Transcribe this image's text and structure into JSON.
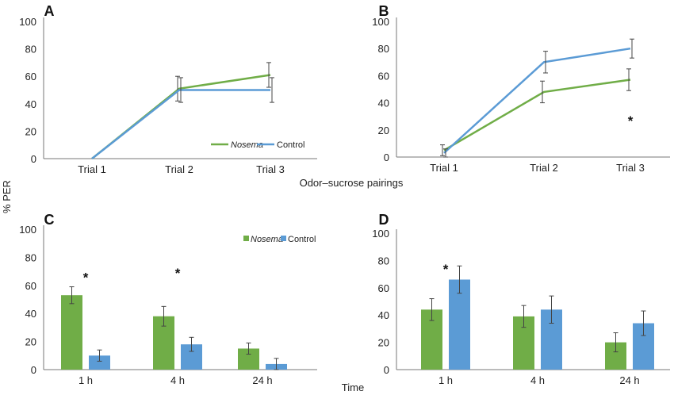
{
  "figure": {
    "ylabel": "% PER",
    "xlabel_top": "Odor–sucrose pairings",
    "xlabel_bottom": "Time"
  },
  "colors": {
    "nosema": "#70ad47",
    "control": "#5b9bd5",
    "axis": "#777777",
    "error": "#444444"
  },
  "chart_data": [
    {
      "panel": "A",
      "type": "line",
      "categories": [
        "Trial 1",
        "Trial 2",
        "Trial 3"
      ],
      "ylim": [
        0,
        100
      ],
      "yticks": [
        0,
        20,
        40,
        60,
        80,
        100
      ],
      "legend": "bottom-right",
      "series": [
        {
          "name": "Nosema",
          "color": "#70ad47",
          "values": [
            0,
            51,
            61
          ],
          "errors": [
            0,
            9,
            9
          ]
        },
        {
          "name": "Control",
          "color": "#5b9bd5",
          "values": [
            0,
            50,
            50
          ],
          "errors": [
            0,
            9,
            9
          ]
        }
      ],
      "annotations": []
    },
    {
      "panel": "B",
      "type": "line",
      "categories": [
        "Trial 1",
        "Trial 2",
        "Trial 3"
      ],
      "ylim": [
        0,
        100
      ],
      "yticks": [
        0,
        20,
        40,
        60,
        80,
        100
      ],
      "series": [
        {
          "name": "Nosema",
          "color": "#70ad47",
          "values": [
            5,
            48,
            57
          ],
          "errors": [
            4,
            8,
            8
          ]
        },
        {
          "name": "Control",
          "color": "#5b9bd5",
          "values": [
            3,
            70,
            80
          ],
          "errors": [
            3,
            8,
            7
          ]
        }
      ],
      "annotations": [
        {
          "text": "*",
          "category": 2,
          "y": 28
        }
      ]
    },
    {
      "panel": "C",
      "type": "bar",
      "categories": [
        "1 h",
        "4 h",
        "24 h"
      ],
      "ylim": [
        0,
        100
      ],
      "yticks": [
        0,
        20,
        40,
        60,
        80,
        100
      ],
      "legend": "top-right",
      "series": [
        {
          "name": "Nosema",
          "color": "#70ad47",
          "values": [
            53,
            38,
            15
          ],
          "errors": [
            6,
            7,
            4
          ]
        },
        {
          "name": "Control",
          "color": "#5b9bd5",
          "values": [
            10,
            18,
            4
          ],
          "errors": [
            4,
            5,
            4
          ]
        }
      ],
      "annotations": [
        {
          "text": "*",
          "category": 0,
          "y": 67
        },
        {
          "text": "*",
          "category": 1,
          "y": 70
        }
      ]
    },
    {
      "panel": "D",
      "type": "bar",
      "categories": [
        "1 h",
        "4 h",
        "24 h"
      ],
      "ylim": [
        0,
        100
      ],
      "yticks": [
        0,
        20,
        40,
        60,
        80,
        100
      ],
      "series": [
        {
          "name": "Nosema",
          "color": "#70ad47",
          "values": [
            44,
            39,
            20
          ],
          "errors": [
            8,
            8,
            7
          ]
        },
        {
          "name": "Control",
          "color": "#5b9bd5",
          "values": [
            66,
            44,
            34
          ],
          "errors": [
            10,
            10,
            9
          ]
        }
      ],
      "annotations": [
        {
          "text": "*",
          "category": 0,
          "y": 75
        }
      ]
    }
  ]
}
